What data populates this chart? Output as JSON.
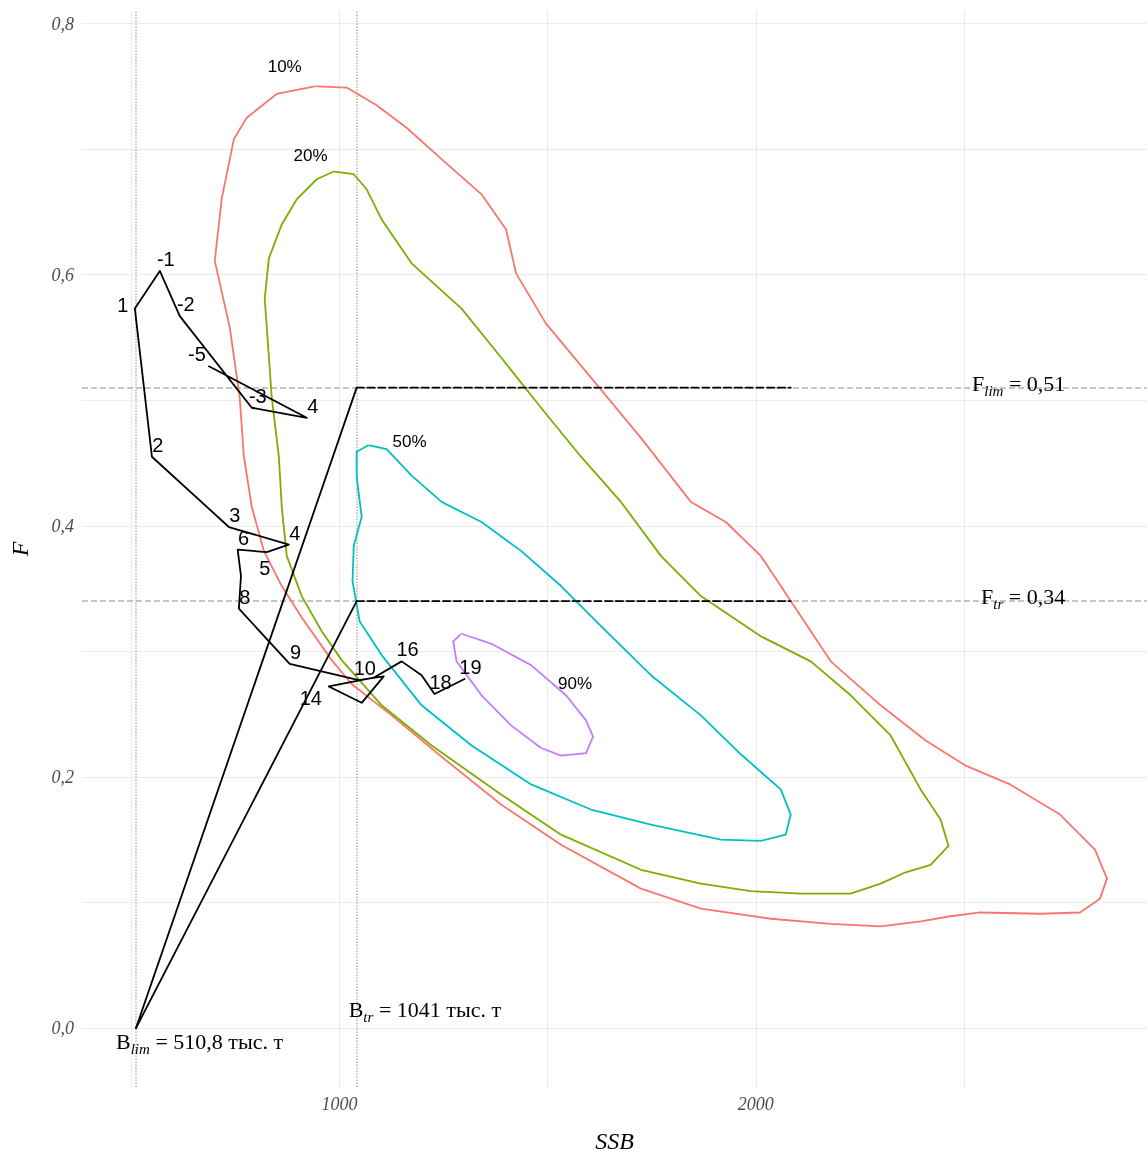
{
  "chart_data": {
    "type": "line",
    "xlabel": "SSB",
    "ylabel": "F",
    "xlim": [
      381,
      2940
    ],
    "ylim": [
      -0.047,
      0.81
    ],
    "xticks": [
      {
        "value": 500,
        "label": null
      },
      1000,
      {
        "value": 1500,
        "label": null
      },
      2000,
      {
        "value": 2500,
        "label": null
      }
    ],
    "yticks": [
      {
        "value": 0,
        "label": "0,0"
      },
      {
        "value": 0.1,
        "label": null
      },
      {
        "value": 0.2,
        "label": "0,2"
      },
      {
        "value": 0.3,
        "label": null
      },
      {
        "value": 0.4,
        "label": "0,4"
      },
      {
        "value": 0.5,
        "label": null
      },
      {
        "value": 0.6,
        "label": "0,6"
      },
      {
        "value": 0.7,
        "label": null
      },
      {
        "value": 0.8,
        "label": "0,8"
      }
    ],
    "grid": true,
    "marker": "none",
    "line_style": "solid",
    "series": [
      {
        "name": "10%",
        "color": "#f8766d",
        "x": [
          945,
          1017,
          1089,
          1161,
          1245,
          1341,
          1400,
          1424,
          1496,
          1604,
          1724,
          1844,
          1928,
          2012,
          2084,
          2180,
          2300,
          2408,
          2504,
          2611,
          2731,
          2815,
          2844,
          2827,
          2779,
          2683,
          2540,
          2468,
          2396,
          2300,
          2180,
          2036,
          1868,
          1724,
          1532,
          1388,
          1245,
          1125,
          1029,
          981,
          909,
          861,
          818,
          789,
          770,
          760,
          736,
          700,
          717,
          746,
          777,
          849,
          940
        ],
        "values": [
          0.75,
          0.749,
          0.735,
          0.717,
          0.692,
          0.664,
          0.636,
          0.601,
          0.561,
          0.518,
          0.47,
          0.419,
          0.403,
          0.376,
          0.34,
          0.292,
          0.257,
          0.229,
          0.209,
          0.194,
          0.17,
          0.142,
          0.119,
          0.103,
          0.092,
          0.091,
          0.092,
          0.089,
          0.085,
          0.081,
          0.083,
          0.087,
          0.095,
          0.111,
          0.146,
          0.178,
          0.216,
          0.249,
          0.274,
          0.293,
          0.327,
          0.352,
          0.38,
          0.415,
          0.455,
          0.502,
          0.558,
          0.611,
          0.661,
          0.708,
          0.725,
          0.744,
          0.75
        ]
      },
      {
        "name": "20%",
        "color": "#7cae00",
        "x": [
          988,
          1034,
          1065,
          1101,
          1173,
          1293,
          1388,
          1484,
          1580,
          1676,
          1772,
          1868,
          2012,
          2132,
          2228,
          2324,
          2396,
          2444,
          2463,
          2420,
          2360,
          2300,
          2228,
          2108,
          1988,
          1868,
          1724,
          1532,
          1388,
          1221,
          1101,
          1005,
          957,
          909,
          873,
          861,
          854,
          837,
          820,
          830,
          861,
          897,
          945,
          984
        ],
        "values": [
          0.682,
          0.68,
          0.668,
          0.644,
          0.609,
          0.573,
          0.534,
          0.494,
          0.455,
          0.419,
          0.376,
          0.344,
          0.312,
          0.292,
          0.265,
          0.233,
          0.19,
          0.166,
          0.145,
          0.13,
          0.124,
          0.115,
          0.107,
          0.107,
          0.109,
          0.115,
          0.126,
          0.154,
          0.186,
          0.225,
          0.257,
          0.293,
          0.316,
          0.344,
          0.376,
          0.415,
          0.455,
          0.502,
          0.581,
          0.613,
          0.64,
          0.66,
          0.676,
          0.682
        ]
      },
      {
        "name": "50%",
        "color": "#00bfc4",
        "x": [
          1072,
          1113,
          1173,
          1245,
          1341,
          1436,
          1532,
          1628,
          1748,
          1868,
          1964,
          2060,
          2084,
          2072,
          2012,
          1916,
          1748,
          1604,
          1460,
          1317,
          1197,
          1101,
          1048,
          1031,
          1034,
          1053,
          1041,
          1041,
          1068
        ],
        "values": [
          0.464,
          0.461,
          0.44,
          0.419,
          0.403,
          0.38,
          0.352,
          0.32,
          0.281,
          0.249,
          0.218,
          0.19,
          0.17,
          0.154,
          0.149,
          0.15,
          0.162,
          0.174,
          0.194,
          0.225,
          0.257,
          0.297,
          0.324,
          0.356,
          0.384,
          0.407,
          0.439,
          0.459,
          0.464
        ]
      },
      {
        "name": "90%",
        "color": "#c77cff",
        "x": [
          1293,
          1365,
          1460,
          1544,
          1592,
          1609,
          1592,
          1532,
          1484,
          1412,
          1341,
          1281,
          1273,
          1289
        ],
        "values": [
          0.314,
          0.306,
          0.289,
          0.265,
          0.245,
          0.232,
          0.219,
          0.217,
          0.223,
          0.241,
          0.265,
          0.292,
          0.308,
          0.313
        ]
      },
      {
        "color": "#000000",
        "x": [
          686,
          921,
          789,
          616,
          568,
          508,
          549,
          734,
          878,
          825,
          755,
          763,
          758,
          880,
          1046,
          1106,
          1053,
          974,
          1082,
          1149,
          1197,
          1228,
          1300
        ],
        "values": [
          0.527,
          0.486,
          0.494,
          0.567,
          0.603,
          0.573,
          0.455,
          0.399,
          0.385,
          0.379,
          0.381,
          0.36,
          0.334,
          0.29,
          0.277,
          0.28,
          0.259,
          0.272,
          0.279,
          0.292,
          0.281,
          0.266,
          0.278
        ]
      },
      {
        "color": "#000000",
        "x": [
          510.8,
          1041
        ],
        "values": [
          0,
          0.51
        ]
      },
      {
        "color": "#000000",
        "x": [
          510.8,
          1041
        ],
        "values": [
          0,
          0.34
        ]
      },
      {
        "color": "#000000",
        "line_style": "dashed",
        "x": [
          1041,
          2084
        ],
        "values": [
          0.51,
          0.51
        ]
      },
      {
        "color": "#000000",
        "line_style": "dashed",
        "x": [
          1041,
          2084
        ],
        "values": [
          0.34,
          0.34
        ]
      }
    ],
    "ref_lines": [
      {
        "axis": "y",
        "value": 0.51,
        "label": "F$_{lim}$ = 0,51",
        "color": "#b3b3b3",
        "line_style": "dashed"
      },
      {
        "axis": "y",
        "value": 0.34,
        "label": "F$_{tr}$ = 0,34",
        "color": "#b3b3b3",
        "line_style": "dashed"
      },
      {
        "axis": "x",
        "value": 510.8,
        "label": "B$_{lim}$ = 510,8 тыс. т",
        "color": "#b3b3b3",
        "line_style": "dotted"
      },
      {
        "axis": "x",
        "value": 1041,
        "label": "B$_{tr}$ = 1041 тыс. т",
        "color": "#b3b3b3",
        "line_style": "dotted"
      }
    ],
    "annotations": [
      {
        "text": "-5",
        "x": 686,
        "y": 0.527
      },
      {
        "text": "4",
        "x": 921,
        "y": 0.486
      },
      {
        "text": "-3",
        "x": 789,
        "y": 0.494
      },
      {
        "text": "-2",
        "x": 616,
        "y": 0.567
      },
      {
        "text": "-1",
        "x": 568,
        "y": 0.603
      },
      {
        "text": "1",
        "x": 508,
        "y": 0.573
      },
      {
        "text": "2",
        "x": 549,
        "y": 0.455
      },
      {
        "text": "3",
        "x": 734,
        "y": 0.399
      },
      {
        "text": "4",
        "x": 878,
        "y": 0.385
      },
      {
        "text": "5",
        "x": 825,
        "y": 0.379
      },
      {
        "text": "6",
        "x": 755,
        "y": 0.381
      },
      {
        "text": "8",
        "x": 758,
        "y": 0.334
      },
      {
        "text": "9",
        "x": 880,
        "y": 0.29
      },
      {
        "text": "10",
        "x": 1046,
        "y": 0.277
      },
      {
        "text": "14",
        "x": 974,
        "y": 0.272
      },
      {
        "text": "16",
        "x": 1149,
        "y": 0.292
      },
      {
        "text": "18",
        "x": 1228,
        "y": 0.266
      },
      {
        "text": "19",
        "x": 1300,
        "y": 0.278
      }
    ]
  }
}
